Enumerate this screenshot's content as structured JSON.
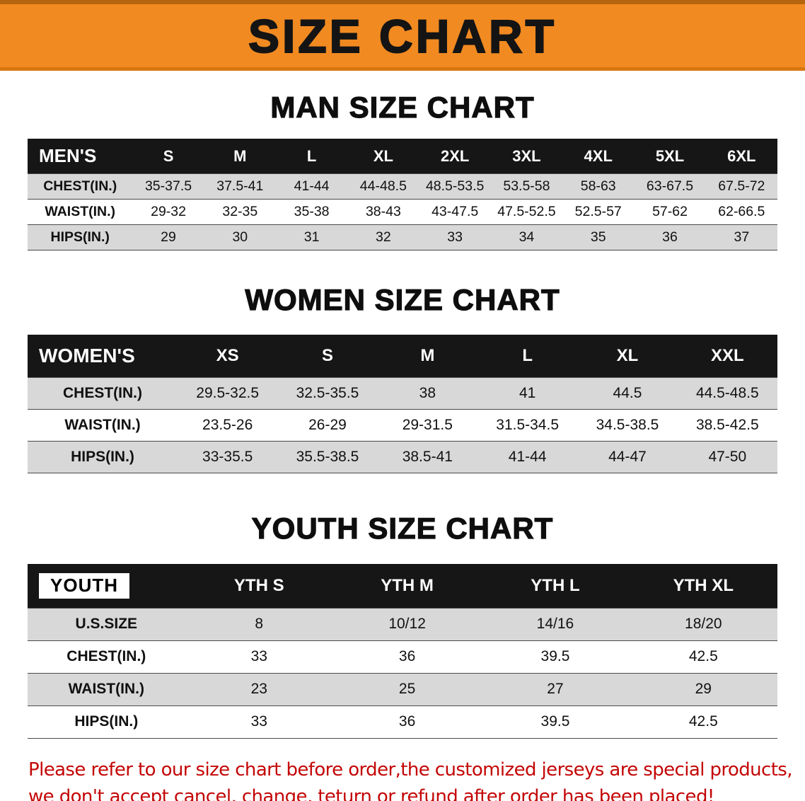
{
  "banner": {
    "title": "SIZE CHART"
  },
  "chart_data": [
    {
      "type": "table",
      "title": "MAN SIZE CHART",
      "header": [
        "MEN'S",
        "S",
        "M",
        "L",
        "XL",
        "2XL",
        "3XL",
        "4XL",
        "5XL",
        "6XL"
      ],
      "rows": [
        [
          "CHEST(IN.)",
          "35-37.5",
          "37.5-41",
          "41-44",
          "44-48.5",
          "48.5-53.5",
          "53.5-58",
          "58-63",
          "63-67.5",
          "67.5-72"
        ],
        [
          "WAIST(IN.)",
          "29-32",
          "32-35",
          "35-38",
          "38-43",
          "43-47.5",
          "47.5-52.5",
          "52.5-57",
          "57-62",
          "62-66.5"
        ],
        [
          "HIPS(IN.)",
          "29",
          "30",
          "31",
          "32",
          "33",
          "34",
          "35",
          "36",
          "37"
        ]
      ]
    },
    {
      "type": "table",
      "title": "WOMEN SIZE CHART",
      "header": [
        "WOMEN'S",
        "XS",
        "S",
        "M",
        "L",
        "XL",
        "XXL"
      ],
      "rows": [
        [
          "CHEST(IN.)",
          "29.5-32.5",
          "32.5-35.5",
          "38",
          "41",
          "44.5",
          "44.5-48.5"
        ],
        [
          "WAIST(IN.)",
          "23.5-26",
          "26-29",
          "29-31.5",
          "31.5-34.5",
          "34.5-38.5",
          "38.5-42.5"
        ],
        [
          "HIPS(IN.)",
          "33-35.5",
          "35.5-38.5",
          "38.5-41",
          "41-44",
          "44-47",
          "47-50"
        ]
      ]
    },
    {
      "type": "table",
      "title": "YOUTH SIZE CHART",
      "header": [
        "YOUTH",
        "YTH S",
        "YTH M",
        "YTH L",
        "YTH XL"
      ],
      "rows": [
        [
          "U.S.SIZE",
          "8",
          "10/12",
          "14/16",
          "18/20"
        ],
        [
          "CHEST(IN.)",
          "33",
          "36",
          "39.5",
          "42.5"
        ],
        [
          "WAIST(IN.)",
          "23",
          "25",
          "27",
          "29"
        ],
        [
          "HIPS(IN.)",
          "33",
          "36",
          "39.5",
          "42.5"
        ]
      ]
    }
  ],
  "disclaimer": {
    "line1": "Please refer to our size chart before order,the customized jerseys are special products,",
    "line2": "we don't accept cancel, change, teturn or refund after order has been placed!"
  },
  "colors": {
    "banner_bg": "#f18a21",
    "banner_edge_top": "#b5650e",
    "banner_edge_bottom": "#d8770f",
    "title_text": "#141414",
    "heading_text": "#0e0e0e",
    "table_header_bg": "#161616",
    "table_header_text": "#ffffff",
    "row_alt": "#d8d8d8",
    "row_line": "#4a4a4a",
    "youth_chip_bg": "#ffffff",
    "youth_chip_text": "#000000",
    "disclaimer_red": "#c40606"
  }
}
